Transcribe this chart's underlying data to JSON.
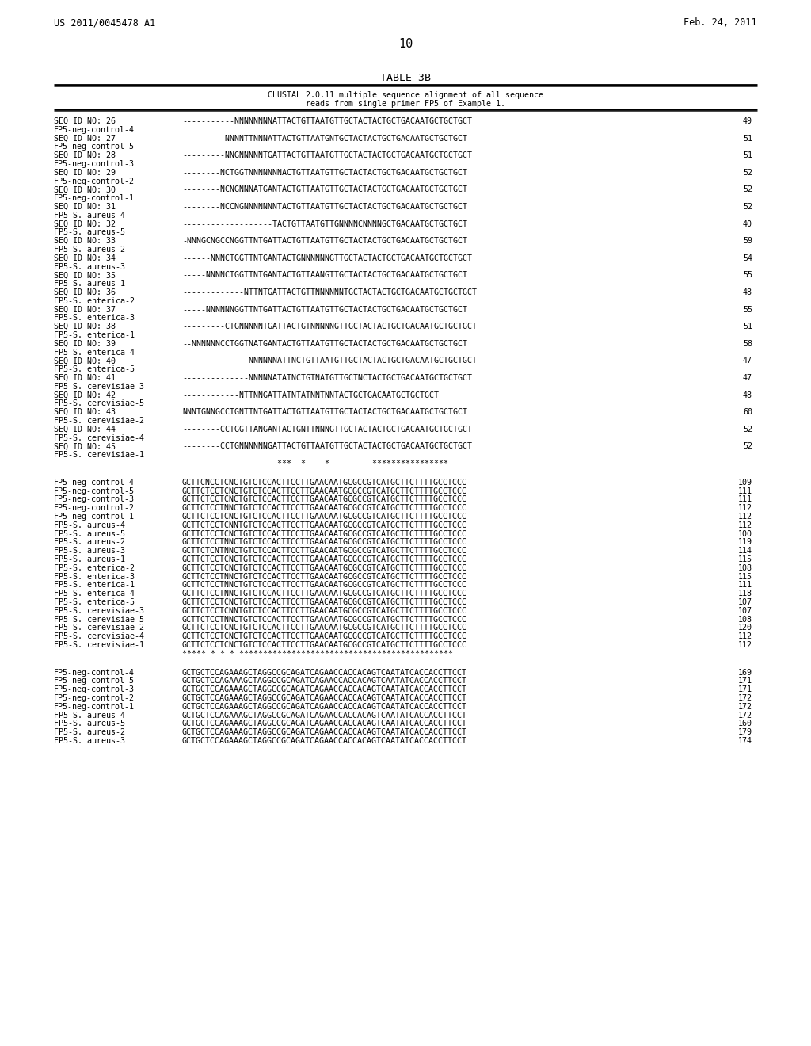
{
  "header_left": "US 2011/0045478 A1",
  "header_right": "Feb. 24, 2011",
  "page_number": "10",
  "table_title": "TABLE 3B",
  "table_subtitle1": "CLUSTAL 2.0.11 multiple sequence alignment of all sequence",
  "table_subtitle2": "reads from single primer FP5 of Example 1.",
  "bg_color": "#ffffff",
  "text_color": "#000000",
  "section1": [
    [
      "SEQ ID NO: 26",
      "-----------NNNNNNNNATTACTGTTAATGTTGCTACTACTGCTGACAATGCTGCTGCT",
      "49"
    ],
    [
      "FP5-neg-control-4",
      "",
      ""
    ],
    [
      "SEQ ID NO: 27",
      "---------NNNNTTNNNATTACTGTTAATGNTGCTACTACTGCTGACAATGCTGCTGCT",
      "51"
    ],
    [
      "FP5-neg-control-5",
      "",
      ""
    ],
    [
      "SEQ ID NO: 28",
      "---------NNGNNNNNTGATTACTGTTAATGTTGCTACTACTGCTGACAATGCTGCTGCT",
      "51"
    ],
    [
      "FP5-neg-control-3",
      "",
      ""
    ],
    [
      "SEQ ID NO: 29",
      "--------NCTGGTNNNNNNNACTGTTAATGTTGCTACTACTGCTGACAATGCTGCTGCT",
      "52"
    ],
    [
      "FP5-neg-control-2",
      "",
      ""
    ],
    [
      "SEQ ID NO: 30",
      "--------NCNGNNNATGANTACTGTTAATGTTGCTACTACTGCTGACAATGCTGCTGCT",
      "52"
    ],
    [
      "FP5-neg-control-1",
      "",
      ""
    ],
    [
      "SEQ ID NO: 31",
      "--------NCCNGNNNNNNNTACTGTTAATGTTGCTACTACTGCTGACAATGCTGCTGCT",
      "52"
    ],
    [
      "FP5-S. aureus-4",
      "",
      ""
    ],
    [
      "SEQ ID NO: 32",
      "-------------------TACTGTTAATGTTGNNNNCNNNNGCTGACAATGCTGCTGCT",
      "40"
    ],
    [
      "FP5-S. aureus-5",
      "",
      ""
    ],
    [
      "SEQ ID NO: 33",
      "-NNNGCNGCCNGGTTNTGATTACTGTTAATGTTGCTACTACTGCTGACAATGCTGCTGCT",
      "59"
    ],
    [
      "FP5-S. aureus-2",
      "",
      ""
    ],
    [
      "SEQ ID NO: 34",
      "------NNNCTGGTTNTGANTACTGNNNNNNGTTGCTACTACTGCTGACAATGCTGCTGCT",
      "54"
    ],
    [
      "FP5-S. aureus-3",
      "",
      ""
    ],
    [
      "SEQ ID NO: 35",
      "-----NNNNCTGGTTNTGANTACTGTTAANGTTGCTACTACTGCTGACAATGCTGCTGCT",
      "55"
    ],
    [
      "FP5-S. aureus-1",
      "",
      ""
    ],
    [
      "SEQ ID NO: 36",
      "-------------NTTNTGATTACTGTTNNNNNNTGCTACTACTGCTGACAATGCTGCTGCT",
      "48"
    ],
    [
      "FP5-S. enterica-2",
      "",
      ""
    ],
    [
      "SEQ ID NO: 37",
      "-----NNNNNNGGTTNTGATTACTGTTAATGTTGCTACTACTGCTGACAATGCTGCTGCT",
      "55"
    ],
    [
      "FP5-S. enterica-3",
      "",
      ""
    ],
    [
      "SEQ ID NO: 38",
      "---------CTGNNNNNTGATTACTGTNNNNNGTTGCTACTACTGCTGACAATGCTGCTGCT",
      "51"
    ],
    [
      "FP5-S. enterica-1",
      "",
      ""
    ],
    [
      "SEQ ID NO: 39",
      "--NNNNNNCCTGGTNATGANTACTGTTAATGTTGCTACTACTGCTGACAATGCTGCTGCT",
      "58"
    ],
    [
      "FP5-S. enterica-4",
      "",
      ""
    ],
    [
      "SEQ ID NO: 40",
      "--------------NNNNNNATTNCTGTTAATGTTGCTACTACTGCTGACAATGCTGCTGCT",
      "47"
    ],
    [
      "FP5-S. enterica-5",
      "",
      ""
    ],
    [
      "SEQ ID NO: 41",
      "--------------NNNNNATATNCTGTNATGTTGCTNCTACTGCTGACAATGCTGCTGCT",
      "47"
    ],
    [
      "FP5-S. cerevisiae-3",
      "",
      ""
    ],
    [
      "SEQ ID NO: 42",
      "------------NTTNNGATTATNTATNNTNNTACTGCTGACAATGCTGCTGCT",
      "48"
    ],
    [
      "FP5-S. cerevisiae-5",
      "",
      ""
    ],
    [
      "SEQ ID NO: 43",
      "NNNTGNNGCCTGNTTNTGATTACTGTTAATGTTGCTACTACTGCTGACAATGCTGCTGCT",
      "60"
    ],
    [
      "FP5-S. cerevisiae-2",
      "",
      ""
    ],
    [
      "SEQ ID NO: 44",
      "--------CCTGGTTANGANTACTGNTTNNNGTTGCTACTACTGCTGACAATGCTGCTGCT",
      "52"
    ],
    [
      "FP5-S. cerevisiae-4",
      "",
      ""
    ],
    [
      "SEQ ID NO: 45",
      "--------CCTGNNNNNNGATTACTGTTAATGTTGCTACTACTGCTGACAATGCTGCTGCT",
      "52"
    ],
    [
      "FP5-S. cerevisiae-1",
      "",
      ""
    ],
    [
      "",
      "                    ***  *    *         ****************",
      ""
    ]
  ],
  "section2": [
    [
      "FP5-neg-control-4",
      "GCTTCNCCTCNCTGTCTCCACTTCCTTGAACAATGCGCCGTCATGCTTCTTTTGCCTCCC",
      "109"
    ],
    [
      "FP5-neg-control-5",
      "GCTTCTCCTCNCTGTCTCCACTTCCTTGAACAATGCGCCGTCATGCTTCTTTTGCCTCCC",
      "111"
    ],
    [
      "FP5-neg-control-3",
      "GCTTCTCCTCNCTGTCTCCACTTCCTTGAACAATGCGCCGTCATGCTTCTTTTGCCTCCC",
      "111"
    ],
    [
      "FP5-neg-control-2",
      "GCTTCTCCTNNCTGTCTCCACTTCCTTGAACAATGCGCCGTCATGCTTCTTTTGCCTCCC",
      "112"
    ],
    [
      "FP5-neg-control-1",
      "GCTTCTCCTCNCTGTCTCCACTTCCTTGAACAATGCGCCGTCATGCTTCTTTTGCCTCCC",
      "112"
    ],
    [
      "FP5-S. aureus-4",
      "GCTTCTCCTCNNTGTCTCCACTTCCTTGAACAATGCGCCGTCATGCTTCTTTTGCCTCCC",
      "112"
    ],
    [
      "FP5-S. aureus-5",
      "GCTTCTCCTCNCTGTCTCCACTTCCTTGAACAATGCGCCGTCATGCTTCTTTTGCCTCCC",
      "100"
    ],
    [
      "FP5-S. aureus-2",
      "GCTTCTCCTNNCTGTCTCCACTTCCTTGAACAATGCGCCGTCATGCTTCTTTTGCCTCCC",
      "119"
    ],
    [
      "FP5-S. aureus-3",
      "GCTTCTCNTNNCTGTCTCCACTTCCTTGAACAATGCGCCGTCATGCTTCTTTTGCCTCCC",
      "114"
    ],
    [
      "FP5-S. aureus-1",
      "GCTTCTCCTCNCTGTCTCCACTTCCTTGAACAATGCGCCGTCATGCTTCTTTTGCCTCCC",
      "115"
    ],
    [
      "FP5-S. enterica-2",
      "GCTTCTCCTCNCTGTCTCCACTTCCTTGAACAATGCGCCGTCATGCTTCTTTTGCCTCCC",
      "108"
    ],
    [
      "FP5-S. enterica-3",
      "GCTTCTCCTNNCTGTCTCCACTTCCTTGAACAATGCGCCGTCATGCTTCTTTTGCCTCCC",
      "115"
    ],
    [
      "FP5-S. enterica-1",
      "GCTTCTCCTNNCTGTCTCCACTTCCTTGAACAATGCGCCGTCATGCTTCTTTTGCCTCCC",
      "111"
    ],
    [
      "FP5-S. enterica-4",
      "GCTTCTCCTNNCTGTCTCCACTTCCTTGAACAATGCGCCGTCATGCTTCTTTTGCCTCCC",
      "118"
    ],
    [
      "FP5-S. enterica-5",
      "GCTTCTCCTCNCTGTCTCCACTTCCTTGAACAATGCGCCGTCATGCTTCTTTTGCCTCCC",
      "107"
    ],
    [
      "FP5-S. cerevisiae-3",
      "GCTTCTCCTCNNTGTCTCCACTTCCTTGAACAATGCGCCGTCATGCTTCTTTTGCCTCCC",
      "107"
    ],
    [
      "FP5-S. cerevisiae-5",
      "GCTTCTCCTNNCTGTCTCCACTTCCTTGAACAATGCGCCGTCATGCTTCTTTTGCCTCCC",
      "108"
    ],
    [
      "FP5-S. cerevisiae-2",
      "GCTTCTCCTCNCTGTCTCCACTTCCTTGAACAATGCGCCGTCATGCTTCTTTTGCCTCCC",
      "120"
    ],
    [
      "FP5-S. cerevisiae-4",
      "GCTTCTCCTCNCTGTCTCCACTTCCTTGAACAATGCGCCGTCATGCTTCTTTTGCCTCCC",
      "112"
    ],
    [
      "FP5-S. cerevisiae-1",
      "GCTTCTCCTCNCTGTCTCCACTTCCTTGAACAATGCGCCGTCATGCTTCTTTTGCCTCCC",
      "112"
    ],
    [
      "",
      "***** * * * *********************************************",
      ""
    ]
  ],
  "section3": [
    [
      "FP5-neg-control-4",
      "GCTGCTCCAGAAAGCTAGGCCGCAGATCAGAACCACCACAGTCAATATCACCACCTTCCT",
      "169"
    ],
    [
      "FP5-neg-control-5",
      "GCTGCTCCAGAAAGCTAGGCCGCAGATCAGAACCACCACAGTCAATATCACCACCTTCCT",
      "171"
    ],
    [
      "FP5-neg-control-3",
      "GCTGCTCCAGAAAGCTAGGCCGCAGATCAGAACCACCACAGTCAATATCACCACCTTCCT",
      "171"
    ],
    [
      "FP5-neg-control-2",
      "GCTGCTCCAGAAAGCTAGGCCGCAGATCAGAACCACCACAGTCAATATCACCACCTTCCT",
      "172"
    ],
    [
      "FP5-neg-control-1",
      "GCTGCTCCAGAAAGCTAGGCCGCAGATCAGAACCACCACAGTCAATATCACCACCTTCCT",
      "172"
    ],
    [
      "FP5-S. aureus-4",
      "GCTGCTCCAGAAAGCTAGGCCGCAGATCAGAACCACCACAGTCAATATCACCACCTTCCT",
      "172"
    ],
    [
      "FP5-S. aureus-5",
      "GCTGCTCCAGAAAGCTAGGCCGCAGATCAGAACCACCACAGTCAATATCACCACCTTCCT",
      "160"
    ],
    [
      "FP5-S. aureus-2",
      "GCTGCTCCAGAAAGCTAGGCCGCAGATCAGAACCACCACAGTCAATATCACCACCTTCCT",
      "179"
    ],
    [
      "FP5-S. aureus-3",
      "GCTGCTCCAGAAAGCTAGGCCGCAGATCAGAACCACCACAGTCAATATCACCACCTTCCT",
      "174"
    ]
  ]
}
